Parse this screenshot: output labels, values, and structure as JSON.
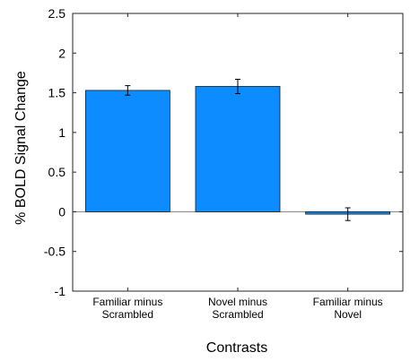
{
  "chart_data": {
    "type": "bar",
    "categories": [
      [
        "Familiar minus",
        "Scrambled"
      ],
      [
        "Novel minus",
        "Scrambled"
      ],
      [
        "Familiar minus",
        "Novel"
      ]
    ],
    "values": [
      1.53,
      1.58,
      -0.03
    ],
    "errors": [
      0.06,
      0.09,
      0.08
    ],
    "xlabel": "Contrasts",
    "ylabel": "% BOLD Signal Change",
    "ylim": [
      -1,
      2.5
    ],
    "yticks": [
      -1,
      -0.5,
      0,
      0.5,
      1,
      1.5,
      2,
      2.5
    ],
    "ytick_labels": [
      "-1",
      "-0.5",
      "0",
      "0.5",
      "1",
      "1.5",
      "2",
      "2.5"
    ],
    "grid": false,
    "bar_color": "#0d8cff",
    "bar_edge_color": "#1a1a1a",
    "zero_line_color": "#808080"
  }
}
